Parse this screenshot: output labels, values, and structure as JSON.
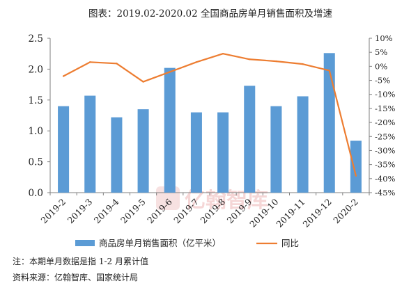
{
  "chart_data": {
    "type": "bar",
    "title": "图表：2019.02-2020.02 全国商品房单月销售面积及增速",
    "categories": [
      "2019-2",
      "2019-3",
      "2019-4",
      "2019-5",
      "2019-6",
      "2019-7",
      "2019-8",
      "2019-9",
      "2019-10",
      "2019-11",
      "2019-12",
      "2020-2"
    ],
    "series": [
      {
        "name": "商品房单月销售面积（亿平米）",
        "type": "bar",
        "axis": "left",
        "color": "#5b9bd5",
        "values": [
          1.4,
          1.57,
          1.22,
          1.35,
          2.02,
          1.3,
          1.3,
          1.73,
          1.4,
          1.56,
          2.26,
          0.84
        ]
      },
      {
        "name": "同比",
        "type": "line",
        "axis": "right",
        "color": "#ed7d31",
        "values": [
          -3.5,
          1.5,
          1.0,
          -5.5,
          -2.0,
          1.5,
          4.5,
          2.5,
          1.8,
          0.8,
          -1.5,
          -39.0
        ]
      }
    ],
    "yleft": {
      "ylim": [
        0,
        2.5
      ],
      "ticks": [
        "0.0",
        "0.5",
        "1.0",
        "1.5",
        "2.0",
        "2.5"
      ]
    },
    "yright": {
      "ylim": [
        -45,
        10
      ],
      "ticks": [
        "10%",
        "5%",
        "0%",
        "-5%",
        "-10%",
        "-15%",
        "-20%",
        "-25%",
        "-30%",
        "-35%",
        "-40%",
        "-45%"
      ]
    },
    "legend": "bottom",
    "grid": false
  },
  "notes": {
    "line1": "注：本期单月数据是指 1-2 月累计值",
    "line2": "资料来源：亿翰智库、国家统计局"
  },
  "watermark": {
    "text": "亿翰智库"
  }
}
